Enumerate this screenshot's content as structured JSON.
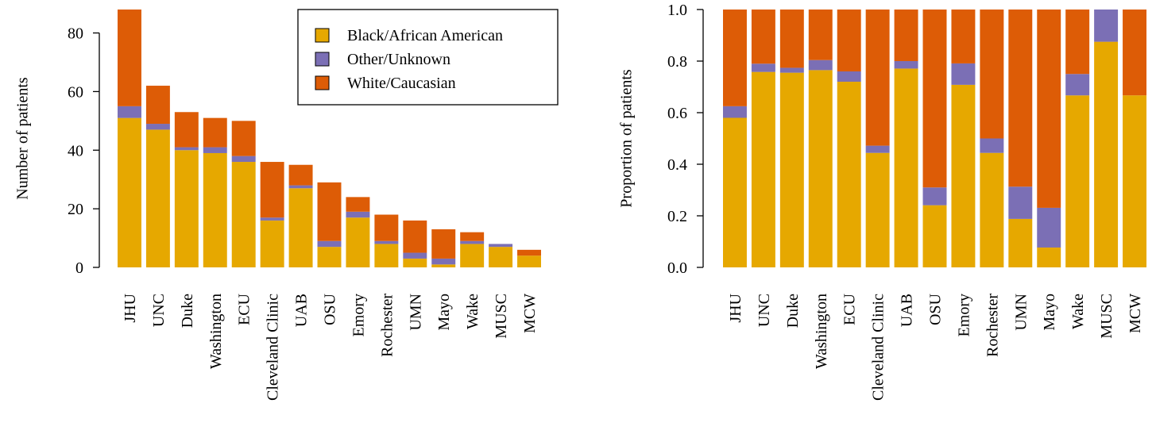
{
  "chart_data": [
    {
      "type": "stacked-bar",
      "ylabel": "Number of patients",
      "categories": [
        "JHU",
        "UNC",
        "Duke",
        "Washington",
        "ECU",
        "Cleveland Clinic",
        "UAB",
        "OSU",
        "Emory",
        "Rochester",
        "UMN",
        "Mayo",
        "Wake",
        "MUSC",
        "MCW"
      ],
      "series": [
        {
          "name": "Black/African American",
          "color": "#e6a800",
          "values": [
            51,
            47,
            40,
            39,
            36,
            16,
            27,
            7,
            17,
            8,
            3,
            1,
            8,
            7,
            4
          ]
        },
        {
          "name": "Other/Unknown",
          "color": "#7b6fb5",
          "values": [
            4,
            2,
            1,
            2,
            2,
            1,
            1,
            2,
            2,
            1,
            2,
            2,
            1,
            1,
            0
          ]
        },
        {
          "name": "White/Caucasian",
          "color": "#dd5c06",
          "values": [
            33,
            13,
            12,
            10,
            12,
            19,
            7,
            20,
            5,
            9,
            11,
            10,
            3,
            0,
            2
          ]
        }
      ],
      "ylim": [
        0,
        88
      ],
      "yticks": [
        0,
        20,
        40,
        60,
        80
      ],
      "legend": "top-right"
    },
    {
      "type": "stacked-bar",
      "ylabel": "Proportion of patients",
      "categories": [
        "JHU",
        "UNC",
        "Duke",
        "Washington",
        "ECU",
        "Cleveland Clinic",
        "UAB",
        "OSU",
        "Emory",
        "Rochester",
        "UMN",
        "Mayo",
        "Wake",
        "MUSC",
        "MCW"
      ],
      "series": [
        {
          "color": "#e6a800",
          "values": [
            0.58,
            0.758,
            0.755,
            0.765,
            0.72,
            0.444,
            0.771,
            0.241,
            0.708,
            0.444,
            0.188,
            0.077,
            0.667,
            0.875,
            0.667
          ]
        },
        {
          "color": "#7b6fb5",
          "values": [
            0.045,
            0.032,
            0.019,
            0.039,
            0.04,
            0.028,
            0.029,
            0.069,
            0.083,
            0.056,
            0.125,
            0.154,
            0.083,
            0.125,
            0
          ]
        },
        {
          "color": "#dd5c06",
          "values": [
            0.375,
            0.21,
            0.226,
            0.196,
            0.24,
            0.528,
            0.2,
            0.69,
            0.209,
            0.5,
            0.687,
            0.769,
            0.25,
            0,
            0.333
          ]
        }
      ],
      "ylim": [
        0,
        1
      ],
      "yticks": [
        {
          "value": 0,
          "label": "0.0"
        },
        {
          "value": 0.2,
          "label": "0.2"
        },
        {
          "value": 0.4,
          "label": "0.4"
        },
        {
          "value": 0.6,
          "label": "0.6"
        },
        {
          "value": 0.8,
          "label": "0.8"
        },
        {
          "value": 1,
          "label": "1.0"
        }
      ]
    }
  ]
}
